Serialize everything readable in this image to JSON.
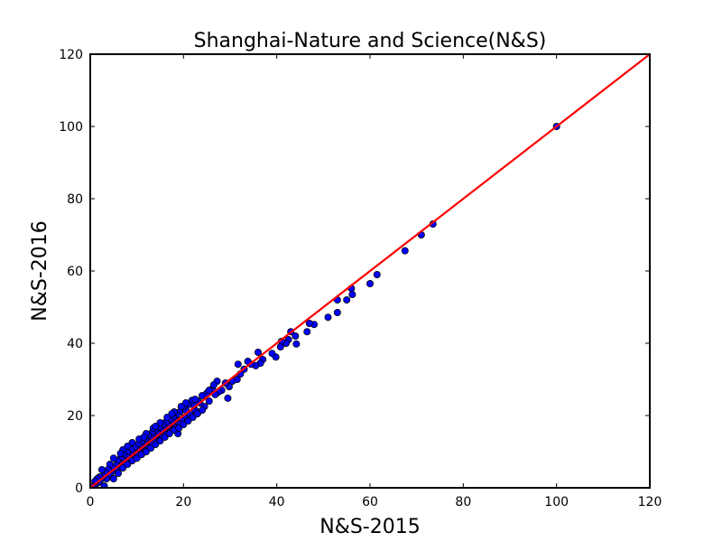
{
  "chart_data": {
    "type": "scatter",
    "title": "Shanghai-Nature and Science(N&S)",
    "xlabel": "N&S-2015",
    "ylabel": "N&S-2016",
    "xlim": [
      0,
      120
    ],
    "ylim": [
      0,
      120
    ],
    "xticks": [
      "0",
      "20",
      "40",
      "60",
      "80",
      "100",
      "120"
    ],
    "yticks": [
      "0",
      "20",
      "40",
      "60",
      "80",
      "100",
      "120"
    ],
    "grid": false,
    "colors": {
      "points": "#0000ff",
      "point_edge": "#000000",
      "line": "#ff0000"
    },
    "reference_line": {
      "from": [
        0,
        0
      ],
      "to": [
        120,
        120
      ]
    },
    "points": [
      [
        100,
        100
      ],
      [
        73.5,
        73
      ],
      [
        71,
        70
      ],
      [
        67.5,
        65.6
      ],
      [
        61.5,
        59
      ],
      [
        60,
        56.5
      ],
      [
        56,
        55.2
      ],
      [
        56.2,
        53.5
      ],
      [
        55,
        52
      ],
      [
        53,
        52
      ],
      [
        53,
        48.5
      ],
      [
        51,
        47.2
      ],
      [
        48,
        45.2
      ],
      [
        47,
        45.5
      ],
      [
        46.5,
        43.2
      ],
      [
        44,
        42
      ],
      [
        44.2,
        39.8
      ],
      [
        43,
        43.2
      ],
      [
        42.5,
        41
      ],
      [
        42,
        40
      ],
      [
        41,
        40.5
      ],
      [
        40.8,
        39
      ],
      [
        39.8,
        36.2
      ],
      [
        39,
        37.2
      ],
      [
        37,
        35.5
      ],
      [
        36.5,
        34.5
      ],
      [
        36,
        37.5
      ],
      [
        35.5,
        33.8
      ],
      [
        34.5,
        34.2
      ],
      [
        33.8,
        35
      ],
      [
        33,
        32.8
      ],
      [
        32.2,
        31.5
      ],
      [
        31.7,
        34.2
      ],
      [
        31.5,
        30
      ],
      [
        30.5,
        29.5
      ],
      [
        29.8,
        28
      ],
      [
        29.5,
        24.8
      ],
      [
        29,
        29
      ],
      [
        28.2,
        27
      ],
      [
        27.5,
        26.5
      ],
      [
        27.2,
        29.5
      ],
      [
        26.8,
        25.8
      ],
      [
        26.2,
        27.5
      ],
      [
        25.5,
        24
      ],
      [
        25,
        26.2
      ],
      [
        24.5,
        22.5
      ],
      [
        24,
        25.5
      ],
      [
        23.5,
        23.5
      ],
      [
        23,
        24
      ],
      [
        22.5,
        21.5
      ],
      [
        22.2,
        22.8
      ],
      [
        21.8,
        24.2
      ],
      [
        21.5,
        20.2
      ],
      [
        21,
        23
      ],
      [
        20.5,
        21.5
      ],
      [
        20.2,
        19.5
      ],
      [
        20,
        22.5
      ],
      [
        19.5,
        18.8
      ],
      [
        19.2,
        21
      ],
      [
        19,
        17.8
      ],
      [
        18.8,
        15
      ],
      [
        18.5,
        20.2
      ],
      [
        18.2,
        18.5
      ],
      [
        18,
        16.8
      ],
      [
        17.8,
        19.5
      ],
      [
        17.5,
        18
      ],
      [
        17.2,
        16.2
      ],
      [
        17,
        19
      ],
      [
        16.8,
        17.2
      ],
      [
        16.5,
        15.5
      ],
      [
        16.2,
        18.2
      ],
      [
        16,
        16.5
      ],
      [
        15.8,
        14.8
      ],
      [
        15.5,
        17.5
      ],
      [
        15.2,
        15.8
      ],
      [
        15,
        14.2
      ],
      [
        14.8,
        16.8
      ],
      [
        14.5,
        15
      ],
      [
        14.2,
        13.5
      ],
      [
        14,
        16.2
      ],
      [
        13.8,
        14.2
      ],
      [
        13.5,
        12.8
      ],
      [
        13.2,
        15.2
      ],
      [
        13,
        13.8
      ],
      [
        12.8,
        12.2
      ],
      [
        12.5,
        14.5
      ],
      [
        12.2,
        12.8
      ],
      [
        12,
        11.2
      ],
      [
        11.8,
        13.5
      ],
      [
        11.5,
        12
      ],
      [
        11.2,
        10.5
      ],
      [
        11,
        12.8
      ],
      [
        10.8,
        11.2
      ],
      [
        10.5,
        9.8
      ],
      [
        10.2,
        12
      ],
      [
        10,
        10.5
      ],
      [
        9.8,
        9.2
      ],
      [
        9.5,
        11.2
      ],
      [
        9.2,
        9.8
      ],
      [
        9,
        8.5
      ],
      [
        8.8,
        10.5
      ],
      [
        8.5,
        9.2
      ],
      [
        8.2,
        7.8
      ],
      [
        8,
        9.8
      ],
      [
        7.8,
        8.5
      ],
      [
        7.5,
        7.2
      ],
      [
        7.2,
        9
      ],
      [
        7,
        7.8
      ],
      [
        6.8,
        6.5
      ],
      [
        6.5,
        8.2
      ],
      [
        6.2,
        7
      ],
      [
        6,
        5.8
      ],
      [
        5.8,
        7.5
      ],
      [
        5.5,
        6.2
      ],
      [
        5.2,
        5.2
      ],
      [
        5,
        8.2
      ],
      [
        4.8,
        5.5
      ],
      [
        4.5,
        4.2
      ],
      [
        4.2,
        6.5
      ],
      [
        4,
        3.8
      ],
      [
        3.8,
        5
      ],
      [
        3.5,
        2.5
      ],
      [
        3,
        0.5
      ],
      [
        3.2,
        4.2
      ],
      [
        2.8,
        3.2
      ],
      [
        2.5,
        5
      ],
      [
        2.2,
        2.2
      ],
      [
        2,
        3
      ],
      [
        1.8,
        1.5
      ],
      [
        1.5,
        2.5
      ],
      [
        1.2,
        1
      ],
      [
        1,
        1.8
      ],
      [
        0.8,
        0.5
      ],
      [
        0.5,
        0.2
      ],
      [
        5,
        2.5
      ],
      [
        6,
        4
      ],
      [
        7,
        5.5
      ],
      [
        8,
        6.5
      ],
      [
        9,
        7.5
      ],
      [
        10,
        8.2
      ],
      [
        11,
        9.2
      ],
      [
        12,
        10
      ],
      [
        13,
        11
      ],
      [
        14,
        12
      ],
      [
        15,
        13
      ],
      [
        16,
        14
      ],
      [
        17,
        15
      ],
      [
        18,
        16
      ],
      [
        19,
        16.5
      ],
      [
        20,
        17.5
      ],
      [
        21,
        18.5
      ],
      [
        22,
        19.5
      ],
      [
        23,
        20.5
      ],
      [
        24,
        21.5
      ],
      [
        9,
        12.5
      ],
      [
        10.5,
        13.5
      ],
      [
        12,
        15
      ],
      [
        13.5,
        16.5
      ],
      [
        15,
        18
      ],
      [
        16.5,
        19.5
      ],
      [
        18,
        21
      ],
      [
        19.5,
        22.5
      ],
      [
        7,
        10.5
      ],
      [
        8,
        11.5
      ],
      [
        11.5,
        14
      ],
      [
        14,
        17
      ],
      [
        6.5,
        9.5
      ],
      [
        17.5,
        20.5
      ],
      [
        20.5,
        23.5
      ],
      [
        22.5,
        24.5
      ],
      [
        25.5,
        27
      ],
      [
        26.5,
        28.5
      ]
    ]
  }
}
